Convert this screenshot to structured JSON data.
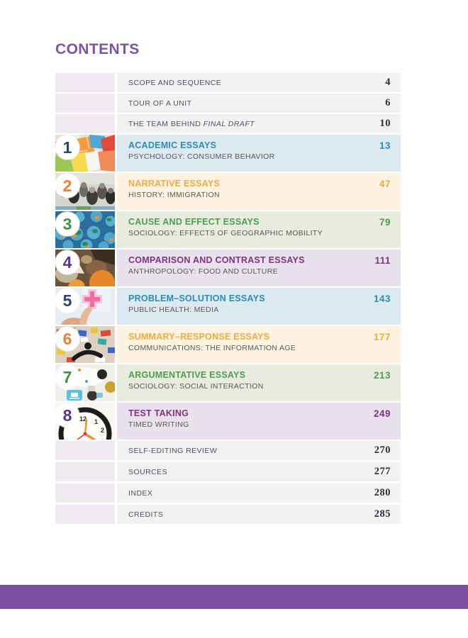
{
  "page": {
    "title": "CONTENTS",
    "accent_color": "#7d53a6",
    "footer_bar_color": "#7b4fa0"
  },
  "front_matter": [
    {
      "label": "SCOPE AND SEQUENCE",
      "page": "4"
    },
    {
      "label": "TOUR OF A UNIT",
      "page": "6"
    },
    {
      "label": "THE TEAM BEHIND",
      "label_italic": "FINAL DRAFT",
      "page": "10"
    }
  ],
  "units": [
    {
      "number": "1",
      "title": "ACADEMIC ESSAYS",
      "subtitle": "PSYCHOLOGY: CONSUMER BEHAVIOR",
      "page": "13",
      "scheme": "blue",
      "thumbnail": "shopping-bags-photo"
    },
    {
      "number": "2",
      "title": "NARRATIVE ESSAYS",
      "subtitle": "HISTORY: IMMIGRATION",
      "page": "47",
      "scheme": "orange",
      "thumbnail": "immigrant-crowd-photo"
    },
    {
      "number": "3",
      "title": "CAUSE AND EFFECT ESSAYS",
      "subtitle": "SOCIOLOGY: EFFECTS OF GEOGRAPHIC MOBILITY",
      "page": "79",
      "scheme": "green",
      "thumbnail": "globes-photo"
    },
    {
      "number": "4",
      "title": "COMPARISON AND CONTRAST ESSAYS",
      "subtitle": "ANTHROPOLOGY: FOOD AND CULTURE",
      "page": "111",
      "scheme": "purple",
      "thumbnail": "food-spices-photo"
    },
    {
      "number": "5",
      "title": "PROBLEM–SOLUTION ESSAYS",
      "subtitle": "PUBLIC HEALTH: MEDIA",
      "page": "143",
      "scheme": "blue",
      "thumbnail": "health-plus-photo"
    },
    {
      "number": "6",
      "title": "SUMMARY–RESPONSE ESSAYS",
      "subtitle": "COMMUNICATIONS: THE INFORMATION AGE",
      "page": "177",
      "scheme": "orange",
      "thumbnail": "media-collage-photo"
    },
    {
      "number": "7",
      "title": "ARGUMENTATIVE ESSAYS",
      "subtitle": "SOCIOLOGY: SOCIAL INTERACTION",
      "page": "213",
      "scheme": "green",
      "thumbnail": "social-desk-photo"
    },
    {
      "number": "8",
      "title": "TEST TAKING",
      "subtitle": "TIMED WRITING",
      "page": "249",
      "scheme": "purple",
      "thumbnail": "clock-photo"
    }
  ],
  "back_matter": [
    {
      "label": "SELF-EDITING REVIEW",
      "page": "270"
    },
    {
      "label": "SOURCES",
      "page": "277"
    },
    {
      "label": "INDEX",
      "page": "280"
    },
    {
      "label": "CREDITS",
      "page": "285"
    }
  ],
  "unit_schemes": {
    "blue": {
      "title_color": "#2f8bb0",
      "row_bg": "#dde9f1",
      "badge_color": "#27476e"
    },
    "orange": {
      "title_color": "#f5a93e",
      "row_bg": "#fdf3e0",
      "badge_color": "#ee7f35"
    },
    "green": {
      "title_color": "#4f9c4f",
      "row_bg": "#e8ecdf",
      "badge_color": "#3f9148"
    },
    "purple": {
      "title_color": "#7f3380",
      "row_bg": "#e9e2ec",
      "badge_color": "#583784"
    }
  }
}
